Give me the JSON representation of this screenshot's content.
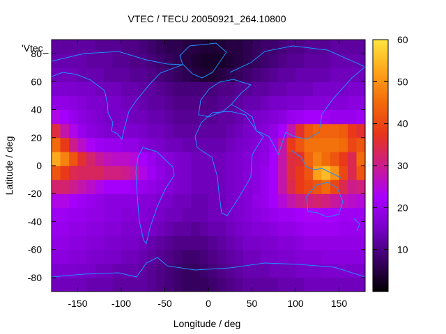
{
  "chart_data": {
    "type": "heatmap",
    "title": "VTEC / TECU 20050921_264.10800",
    "xlabel": "Longitude / deg",
    "ylabel": "Latitude / deg",
    "xlim": [
      -180,
      180
    ],
    "ylim": [
      -90,
      90
    ],
    "xticks": [
      -150,
      -100,
      -50,
      0,
      50,
      100,
      150
    ],
    "yticks": [
      -80,
      -60,
      -40,
      -20,
      0,
      20,
      40,
      60,
      80
    ],
    "colorbar": {
      "min": 0,
      "max": 60,
      "ticks": [
        10,
        20,
        30,
        40,
        50,
        60
      ],
      "colors": [
        "#000000",
        "#3a0066",
        "#7800c8",
        "#a800ff",
        "#cc1c8c",
        "#e8351a",
        "#f26a0a",
        "#fda51a",
        "#ffe640"
      ]
    },
    "key_label": "'Vtec_",
    "grid": false,
    "lat": [
      -85,
      -75,
      -65,
      -55,
      -45,
      -35,
      -25,
      -15,
      -5,
      5,
      15,
      25,
      35,
      45,
      55,
      65,
      75,
      85
    ],
    "lon": [
      -175,
      -165,
      -155,
      -145,
      -135,
      -125,
      -115,
      -105,
      -95,
      -85,
      -75,
      -65,
      -55,
      -45,
      -35,
      -25,
      -15,
      -5,
      5,
      15,
      25,
      35,
      45,
      55,
      65,
      75,
      85,
      95,
      105,
      115,
      125,
      135,
      145,
      155,
      165,
      175
    ],
    "values": [
      [
        14,
        14,
        14,
        14,
        13,
        13,
        13,
        12,
        12,
        12,
        12,
        11,
        10,
        9,
        8,
        7,
        7,
        7,
        8,
        9,
        10,
        11,
        12,
        12,
        12,
        12,
        13,
        13,
        13,
        14,
        14,
        14,
        14,
        14,
        14,
        14
      ],
      [
        16,
        16,
        16,
        15,
        15,
        14,
        14,
        13,
        13,
        13,
        12,
        11,
        10,
        9,
        8,
        7,
        7,
        8,
        9,
        10,
        11,
        12,
        13,
        13,
        13,
        14,
        14,
        14,
        15,
        15,
        15,
        16,
        16,
        16,
        16,
        16
      ],
      [
        18,
        18,
        17,
        17,
        16,
        16,
        15,
        15,
        14,
        14,
        13,
        12,
        11,
        10,
        9,
        8,
        8,
        9,
        10,
        11,
        12,
        13,
        14,
        14,
        15,
        15,
        16,
        16,
        17,
        17,
        17,
        18,
        18,
        18,
        18,
        18
      ],
      [
        19,
        19,
        18,
        18,
        17,
        17,
        16,
        16,
        15,
        15,
        14,
        13,
        12,
        11,
        10,
        10,
        10,
        10,
        11,
        12,
        13,
        14,
        15,
        15,
        16,
        16,
        17,
        17,
        18,
        19,
        19,
        19,
        19,
        19,
        19,
        19
      ],
      [
        20,
        20,
        19,
        19,
        18,
        18,
        17,
        17,
        16,
        16,
        16,
        15,
        14,
        13,
        12,
        12,
        11,
        12,
        13,
        13,
        14,
        15,
        16,
        17,
        17,
        18,
        19,
        19,
        20,
        21,
        21,
        21,
        21,
        20,
        20,
        20
      ],
      [
        21,
        21,
        20,
        20,
        19,
        19,
        18,
        18,
        17,
        17,
        17,
        16,
        15,
        14,
        14,
        13,
        13,
        13,
        14,
        14,
        15,
        16,
        17,
        18,
        19,
        20,
        21,
        21,
        22,
        23,
        23,
        22,
        22,
        21,
        21,
        21
      ],
      [
        24,
        24,
        22,
        21,
        20,
        19,
        18,
        18,
        18,
        18,
        17,
        17,
        16,
        15,
        14,
        14,
        13,
        13,
        14,
        14,
        15,
        16,
        17,
        19,
        20,
        22,
        25,
        28,
        30,
        31,
        32,
        31,
        29,
        27,
        26,
        25
      ],
      [
        32,
        32,
        30,
        28,
        26,
        24,
        22,
        22,
        22,
        21,
        20,
        19,
        18,
        17,
        16,
        15,
        14,
        14,
        14,
        14,
        15,
        16,
        17,
        18,
        20,
        22,
        28,
        34,
        38,
        40,
        42,
        45,
        40,
        34,
        30,
        31
      ],
      [
        42,
        38,
        34,
        33,
        33,
        33,
        31,
        31,
        30,
        28,
        24,
        21,
        19,
        17,
        16,
        15,
        14,
        14,
        14,
        14,
        15,
        16,
        17,
        18,
        20,
        22,
        28,
        35,
        38,
        42,
        52,
        55,
        50,
        40,
        34,
        42
      ],
      [
        53,
        48,
        42,
        36,
        32,
        29,
        27,
        26,
        26,
        25,
        22,
        20,
        18,
        17,
        16,
        15,
        14,
        14,
        14,
        14,
        15,
        16,
        17,
        18,
        19,
        22,
        28,
        35,
        36,
        44,
        48,
        45,
        42,
        38,
        34,
        45
      ],
      [
        45,
        38,
        30,
        26,
        23,
        21,
        20,
        20,
        19,
        19,
        17,
        16,
        15,
        14,
        14,
        13,
        13,
        13,
        13,
        13,
        14,
        15,
        16,
        17,
        18,
        21,
        28,
        38,
        42,
        46,
        46,
        46,
        46,
        45,
        40,
        42
      ],
      [
        35,
        28,
        24,
        20,
        18,
        17,
        16,
        16,
        16,
        16,
        15,
        14,
        14,
        13,
        12,
        12,
        12,
        12,
        12,
        12,
        13,
        14,
        15,
        16,
        17,
        19,
        22,
        28,
        36,
        42,
        44,
        44,
        44,
        43,
        38,
        36
      ],
      [
        24,
        22,
        20,
        18,
        17,
        16,
        15,
        15,
        15,
        14,
        14,
        13,
        13,
        12,
        11,
        11,
        11,
        11,
        11,
        12,
        12,
        13,
        14,
        15,
        16,
        17,
        18,
        20,
        21,
        22,
        22,
        21,
        20,
        20,
        20,
        21
      ],
      [
        19,
        19,
        18,
        17,
        16,
        16,
        15,
        15,
        14,
        14,
        13,
        12,
        12,
        11,
        10,
        10,
        10,
        10,
        10,
        11,
        11,
        12,
        13,
        13,
        14,
        15,
        15,
        16,
        16,
        17,
        17,
        17,
        17,
        17,
        18,
        18
      ],
      [
        16,
        16,
        16,
        15,
        15,
        14,
        14,
        14,
        13,
        13,
        12,
        12,
        11,
        10,
        9,
        9,
        9,
        9,
        9,
        10,
        10,
        11,
        11,
        12,
        12,
        13,
        13,
        14,
        14,
        14,
        15,
        15,
        15,
        15,
        16,
        16
      ],
      [
        14,
        14,
        14,
        13,
        13,
        13,
        12,
        12,
        12,
        11,
        11,
        10,
        9,
        8,
        7,
        6,
        5,
        4,
        4,
        5,
        6,
        7,
        8,
        9,
        10,
        11,
        12,
        12,
        13,
        13,
        13,
        13,
        14,
        14,
        14,
        14
      ],
      [
        13,
        13,
        13,
        13,
        12,
        12,
        12,
        11,
        11,
        10,
        10,
        9,
        8,
        7,
        6,
        5,
        4,
        3,
        3,
        3,
        4,
        5,
        6,
        7,
        8,
        9,
        10,
        11,
        11,
        12,
        12,
        12,
        13,
        13,
        13,
        13
      ],
      [
        12,
        12,
        12,
        12,
        12,
        11,
        11,
        11,
        10,
        10,
        9,
        8,
        7,
        6,
        6,
        5,
        5,
        4,
        4,
        4,
        5,
        5,
        6,
        7,
        8,
        8,
        9,
        10,
        10,
        11,
        11,
        11,
        12,
        12,
        12,
        12
      ]
    ]
  }
}
